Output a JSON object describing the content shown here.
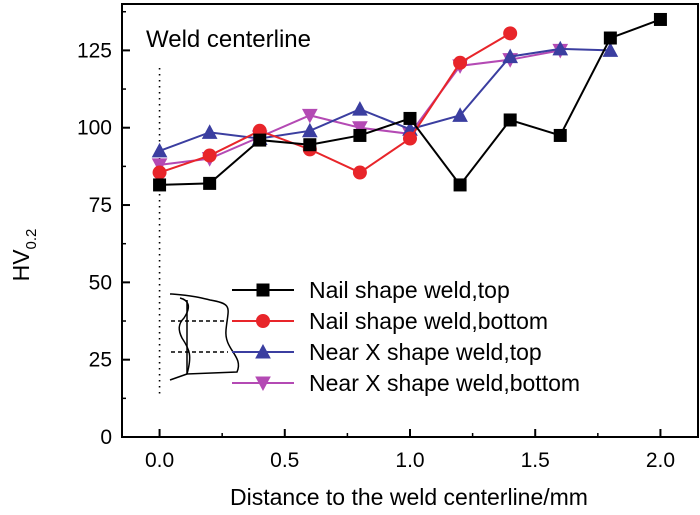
{
  "chart_data": {
    "type": "line",
    "title": "",
    "xlabel": "Distance to the weld centerline/mm",
    "ylabel": "HV",
    "ylabel_sub": "0.2",
    "xlim": [
      -0.15,
      2.15
    ],
    "ylim": [
      0,
      140
    ],
    "xticks": [
      0.0,
      0.5,
      1.0,
      1.5,
      2.0
    ],
    "xtick_labels": [
      "0.0",
      "0.5",
      "1.0",
      "1.5",
      "2.0"
    ],
    "yticks": [
      0,
      25,
      50,
      75,
      100,
      125
    ],
    "ytick_labels": [
      "0",
      "25",
      "50",
      "75",
      "100",
      "125"
    ],
    "annotation": "Weld centerline",
    "centerline_x": 0.0,
    "legend_position": "bottom-right",
    "series": [
      {
        "name": "Nail shape weld,top",
        "color": "#000000",
        "marker": "square",
        "x": [
          0.0,
          0.2,
          0.4,
          0.6,
          0.8,
          1.0,
          1.2,
          1.4,
          1.6,
          1.8,
          2.0
        ],
        "y": [
          81.5,
          82,
          96,
          94.5,
          97.5,
          103,
          81.5,
          102.5,
          97.5,
          129,
          135
        ]
      },
      {
        "name": "Nail shape weld,bottom",
        "color": "#e8252a",
        "marker": "circle",
        "x": [
          0.0,
          0.2,
          0.4,
          0.6,
          0.8,
          1.0,
          1.2,
          1.4
        ],
        "y": [
          85.5,
          91,
          99,
          93,
          85.5,
          96.5,
          121,
          130.5
        ]
      },
      {
        "name": "Near X shape weld,top",
        "color": "#3b3ea0",
        "marker": "triangle-up",
        "x": [
          0.0,
          0.2,
          0.4,
          0.6,
          0.8,
          1.0,
          1.2,
          1.4,
          1.6,
          1.8
        ],
        "y": [
          92.5,
          98.5,
          96.5,
          99,
          106,
          99.5,
          104,
          123,
          125.5,
          125
        ]
      },
      {
        "name": "Near X shape weld,bottom",
        "color": "#b44ab4",
        "marker": "triangle-down",
        "x": [
          0.0,
          0.2,
          0.4,
          0.6,
          0.8,
          1.0,
          1.2,
          1.4,
          1.6
        ],
        "y": [
          88,
          90,
          97,
          104,
          100,
          98,
          120,
          122,
          125
        ]
      }
    ]
  }
}
